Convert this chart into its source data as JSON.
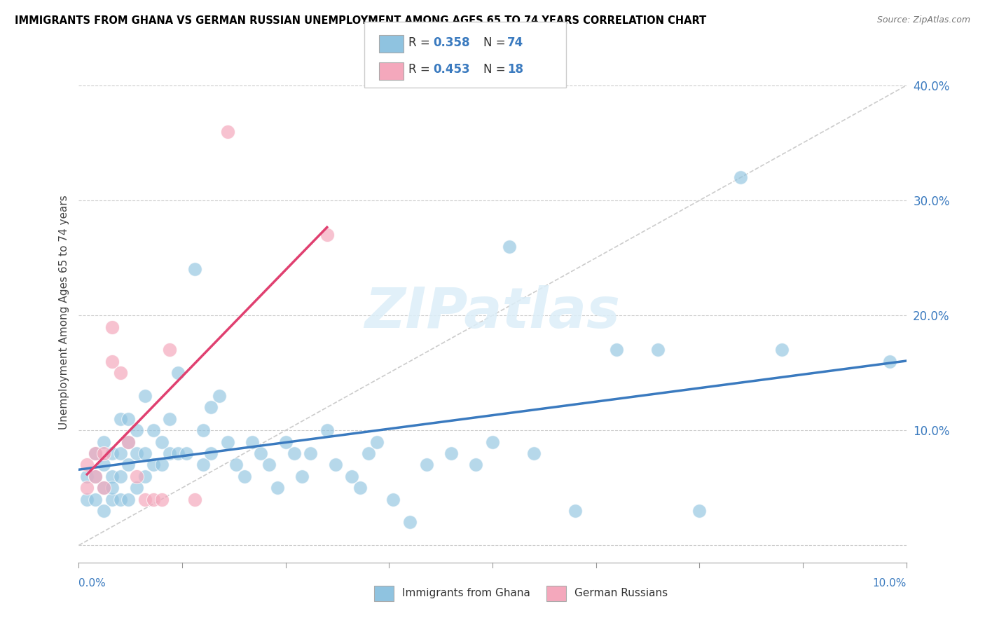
{
  "title": "IMMIGRANTS FROM GHANA VS GERMAN RUSSIAN UNEMPLOYMENT AMONG AGES 65 TO 74 YEARS CORRELATION CHART",
  "source": "Source: ZipAtlas.com",
  "ylabel": "Unemployment Among Ages 65 to 74 years",
  "y_ticks": [
    0.0,
    0.1,
    0.2,
    0.3,
    0.4
  ],
  "y_tick_labels": [
    "",
    "10.0%",
    "20.0%",
    "30.0%",
    "40.0%"
  ],
  "x_range": [
    0.0,
    0.1
  ],
  "y_range": [
    -0.015,
    0.42
  ],
  "legend1_R": "0.358",
  "legend1_N": "74",
  "legend2_R": "0.453",
  "legend2_N": "18",
  "blue_color": "#8fc3e0",
  "pink_color": "#f4a8bc",
  "blue_line_color": "#3a7abf",
  "pink_line_color": "#e04070",
  "diagonal_color": "#cccccc",
  "watermark": "ZIPatlas",
  "blue_scatter_x": [
    0.001,
    0.001,
    0.002,
    0.002,
    0.002,
    0.003,
    0.003,
    0.003,
    0.003,
    0.004,
    0.004,
    0.004,
    0.004,
    0.005,
    0.005,
    0.005,
    0.005,
    0.006,
    0.006,
    0.006,
    0.006,
    0.007,
    0.007,
    0.007,
    0.008,
    0.008,
    0.008,
    0.009,
    0.009,
    0.01,
    0.01,
    0.011,
    0.011,
    0.012,
    0.012,
    0.013,
    0.014,
    0.015,
    0.015,
    0.016,
    0.016,
    0.017,
    0.018,
    0.019,
    0.02,
    0.021,
    0.022,
    0.023,
    0.024,
    0.025,
    0.026,
    0.027,
    0.028,
    0.03,
    0.031,
    0.033,
    0.034,
    0.035,
    0.036,
    0.038,
    0.04,
    0.042,
    0.045,
    0.048,
    0.05,
    0.052,
    0.055,
    0.06,
    0.065,
    0.07,
    0.075,
    0.08,
    0.085,
    0.098
  ],
  "blue_scatter_y": [
    0.04,
    0.06,
    0.04,
    0.06,
    0.08,
    0.03,
    0.05,
    0.07,
    0.09,
    0.04,
    0.06,
    0.08,
    0.05,
    0.04,
    0.06,
    0.08,
    0.11,
    0.04,
    0.07,
    0.09,
    0.11,
    0.05,
    0.08,
    0.1,
    0.06,
    0.08,
    0.13,
    0.07,
    0.1,
    0.07,
    0.09,
    0.08,
    0.11,
    0.08,
    0.15,
    0.08,
    0.24,
    0.07,
    0.1,
    0.08,
    0.12,
    0.13,
    0.09,
    0.07,
    0.06,
    0.09,
    0.08,
    0.07,
    0.05,
    0.09,
    0.08,
    0.06,
    0.08,
    0.1,
    0.07,
    0.06,
    0.05,
    0.08,
    0.09,
    0.04,
    0.02,
    0.07,
    0.08,
    0.07,
    0.09,
    0.26,
    0.08,
    0.03,
    0.17,
    0.17,
    0.03,
    0.32,
    0.17,
    0.16
  ],
  "pink_scatter_x": [
    0.001,
    0.001,
    0.002,
    0.002,
    0.003,
    0.003,
    0.004,
    0.004,
    0.005,
    0.006,
    0.007,
    0.008,
    0.009,
    0.01,
    0.011,
    0.014,
    0.018,
    0.03
  ],
  "pink_scatter_y": [
    0.05,
    0.07,
    0.06,
    0.08,
    0.05,
    0.08,
    0.19,
    0.16,
    0.15,
    0.09,
    0.06,
    0.04,
    0.04,
    0.04,
    0.17,
    0.04,
    0.36,
    0.27
  ]
}
